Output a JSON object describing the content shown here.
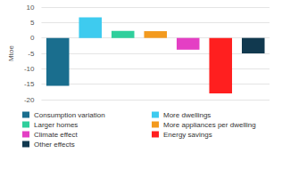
{
  "chart_data": {
    "type": "bar",
    "y_label": "Mtoe",
    "categories": [
      "Consumption variation",
      "More dwellings",
      "Larger homes",
      "More appliances per dwelling",
      "Climate effect",
      "Energy savings",
      "Other effects"
    ],
    "values": [
      -15.5,
      6.7,
      2.3,
      2.2,
      -3.8,
      -18,
      -5
    ],
    "colors": [
      "#1a6e8e",
      "#3ecbef",
      "#2fcf9c",
      "#f39a1e",
      "#e43fc4",
      "#ff1f1f",
      "#11394f"
    ],
    "ylim": [
      -20,
      10
    ],
    "yticks": [
      -20,
      -15,
      -10,
      -5,
      0,
      5,
      10
    ],
    "grid": true,
    "legend": "bottom",
    "tick_labels": "y"
  }
}
